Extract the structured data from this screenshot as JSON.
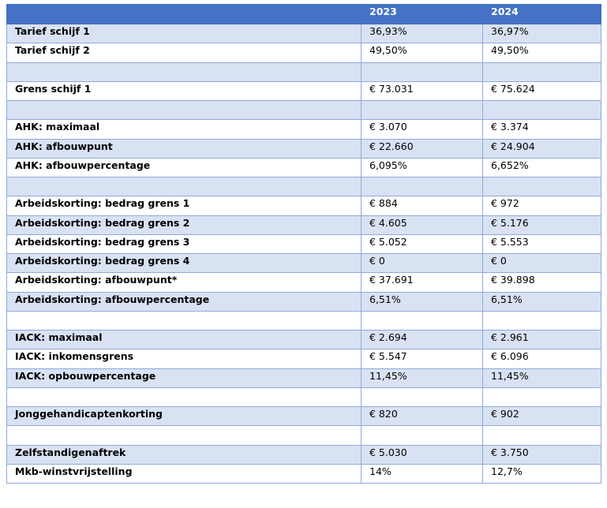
{
  "table": {
    "header": [
      null,
      "2023",
      "2024"
    ],
    "rows": [
      [
        "Tarief schijf 1",
        "36,93%",
        "36,97%"
      ],
      [
        "Tarief schijf 2",
        "49,50%",
        "49,50%"
      ],
      null,
      [
        "Grens schijf 1",
        "€ 73.031",
        "€ 75.624"
      ],
      null,
      [
        "AHK: maximaal",
        "€ 3.070",
        "€ 3.374"
      ],
      [
        "AHK: afbouwpunt",
        "€ 22.660",
        "€ 24.904"
      ],
      [
        "AHK: afbouwpercentage",
        "6,095%",
        "6,652%"
      ],
      null,
      [
        "Arbeidskorting: bedrag grens 1",
        "€ 884",
        "€ 972"
      ],
      [
        "Arbeidskorting: bedrag grens 2",
        "€ 4.605",
        "€ 5.176"
      ],
      [
        "Arbeidskorting: bedrag grens 3",
        "€ 5.052",
        "€ 5.553"
      ],
      [
        "Arbeidskorting: bedrag grens 4",
        "€ 0",
        "€ 0"
      ],
      [
        "Arbeidskorting: afbouwpunt*",
        "€ 37.691",
        "€ 39.898"
      ],
      [
        "Arbeidskorting: afbouwpercentage",
        "6,51%",
        "6,51%"
      ],
      null,
      [
        "IACK: maximaal",
        "€ 2.694",
        "€ 2.961"
      ],
      [
        "IACK: inkomensgrens",
        "€ 5.547",
        "€ 6.096"
      ],
      [
        "IACK: opbouwpercentage",
        "11,45%",
        "11,45%"
      ],
      null,
      [
        "Jonggehandicaptenkorting",
        "€ 820",
        "€ 902"
      ],
      null,
      [
        "Zelfstandigenaftrek",
        "€ 5.030",
        "€ 3.750"
      ],
      [
        "Mkb-winstvrijstelling",
        "14%",
        "12,7%"
      ]
    ]
  }
}
